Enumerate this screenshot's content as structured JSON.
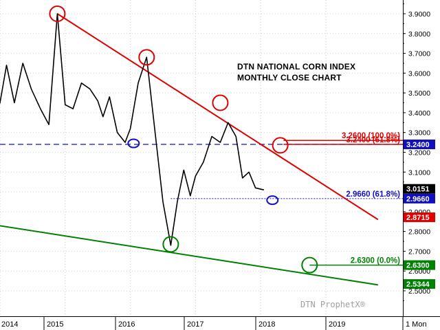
{
  "chart_data": {
    "type": "line",
    "title": "DTN NATIONAL CORN INDEX",
    "subtitle": "MONTHLY CLOSE CHART",
    "ylim": [
      2.45,
      3.95
    ],
    "y_ticks": [
      "3.9000",
      "3.8000",
      "3.7000",
      "3.6000",
      "3.5000",
      "3.4000",
      "3.3000",
      "3.2000",
      "3.1000",
      "3.0000",
      "2.9000",
      "2.8000",
      "2.7000",
      "2.6000",
      "2.5000"
    ],
    "x_labels": [
      "2014",
      "2015",
      "2016",
      "2017",
      "2018",
      "2019",
      "1 Mon"
    ],
    "series": [
      {
        "values": [
          [
            2013.45,
            3.95
          ],
          [
            2013.58,
            3.38
          ],
          [
            2013.68,
            3.42
          ],
          [
            2013.78,
            2.84
          ],
          [
            2013.88,
            3.35
          ],
          [
            2014.0,
            3.45
          ],
          [
            2014.1,
            3.64
          ],
          [
            2014.22,
            3.45
          ],
          [
            2014.35,
            3.65
          ],
          [
            2014.48,
            3.52
          ],
          [
            2014.62,
            3.42
          ],
          [
            2014.75,
            3.34
          ],
          [
            2014.88,
            3.9
          ],
          [
            2015.0,
            3.44
          ],
          [
            2015.12,
            3.42
          ],
          [
            2015.25,
            3.55
          ],
          [
            2015.38,
            3.52
          ],
          [
            2015.5,
            3.46
          ],
          [
            2015.58,
            3.38
          ],
          [
            2015.68,
            3.48
          ],
          [
            2015.8,
            3.3
          ],
          [
            2015.92,
            3.25
          ],
          [
            2016.0,
            3.32
          ],
          [
            2016.12,
            3.55
          ],
          [
            2016.25,
            3.68
          ],
          [
            2016.38,
            3.3
          ],
          [
            2016.5,
            2.95
          ],
          [
            2016.62,
            2.73
          ],
          [
            2016.72,
            2.95
          ],
          [
            2016.82,
            3.11
          ],
          [
            2016.92,
            2.98
          ],
          [
            2017.0,
            3.08
          ],
          [
            2017.12,
            3.15
          ],
          [
            2017.25,
            3.28
          ],
          [
            2017.38,
            3.25
          ],
          [
            2017.5,
            3.35
          ],
          [
            2017.62,
            3.28
          ],
          [
            2017.72,
            3.07
          ],
          [
            2017.82,
            3.1
          ],
          [
            2017.92,
            3.02
          ],
          [
            2018.05,
            3.01
          ]
        ]
      }
    ],
    "trendlines": [
      {
        "color": "#e00000",
        "x": [
          2014.88,
          2019.8
        ],
        "y": [
          3.9,
          2.86
        ]
      },
      {
        "color": "#008000",
        "x": [
          2013.78,
          2019.8
        ],
        "y": [
          2.84,
          2.53
        ]
      }
    ],
    "levels": [
      {
        "label": "3.2600 (100.0%)",
        "value": 3.26,
        "color": "#e00000",
        "style": "solid"
      },
      {
        "label": "3.2400 (61.8%)",
        "value": 3.24,
        "color": "#e00000",
        "style": "solid"
      },
      {
        "label": "2.9660 (61.8%)",
        "value": 2.966,
        "color": "#1010c0",
        "style": "dotted"
      },
      {
        "label": "2.6300 (0.0%)",
        "value": 2.63,
        "color": "#008000",
        "style": "solid"
      }
    ],
    "blue_dashed_level": 3.24,
    "price_boxes": [
      {
        "text": "3.2400",
        "value": 3.24,
        "bg": "#1010c0",
        "fg": "#ffffff"
      },
      {
        "text": "3.0151",
        "value": 3.0151,
        "bg": "#000000",
        "fg": "#ffffff"
      },
      {
        "text": "2.9660",
        "value": 2.966,
        "bg": "#1010c0",
        "fg": "#ffffff"
      },
      {
        "text": "2.8715",
        "value": 2.8715,
        "bg": "#e00000",
        "fg": "#ffffff"
      },
      {
        "text": "2.6300",
        "value": 2.63,
        "bg": "#008000",
        "fg": "#ffffff"
      },
      {
        "text": "2.5344",
        "value": 2.5344,
        "bg": "#008000",
        "fg": "#ffffff"
      }
    ],
    "circles": [
      {
        "color": "#e00000",
        "x": 2014.88,
        "y": 3.9
      },
      {
        "color": "#e00000",
        "x": 2016.25,
        "y": 3.68
      },
      {
        "color": "#e00000",
        "x": 2017.38,
        "y": 3.45
      },
      {
        "color": "#e00000",
        "x": 2018.3,
        "y": 3.235
      },
      {
        "color": "#1010c0",
        "x": 2016.05,
        "y": 3.245,
        "small": true
      },
      {
        "color": "#1010c0",
        "x": 2018.18,
        "y": 2.958,
        "small": true
      },
      {
        "color": "#008000",
        "x": 2013.78,
        "y": 2.84
      },
      {
        "color": "#008000",
        "x": 2016.62,
        "y": 2.735
      },
      {
        "color": "#008000",
        "x": 2018.75,
        "y": 2.63
      }
    ],
    "watermark": "DTN ProphetX®"
  }
}
